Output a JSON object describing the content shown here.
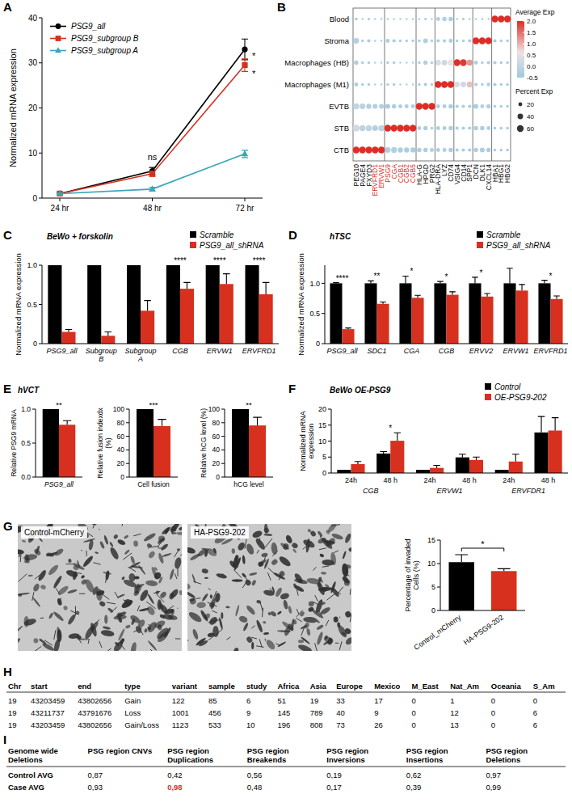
{
  "chart_data": [
    {
      "type": "line",
      "panel": "A",
      "y_label": "Normalized mRNA expression",
      "categories": [
        "24 hr",
        "48 hr",
        "72 hr"
      ],
      "ylim": [
        0,
        40
      ],
      "yticks": [
        0,
        10,
        20,
        30,
        40
      ],
      "legend": "upper left",
      "series": [
        {
          "name": "PSG9_all",
          "color": "#000000",
          "marker": "circle",
          "values": [
            1,
            6,
            33
          ],
          "errors": [
            0.2,
            0.8,
            2.3
          ]
        },
        {
          "name": "PSG9_subgroup B",
          "color": "#d7301f",
          "marker": "square",
          "values": [
            1,
            5.4,
            29.5
          ],
          "errors": [
            0.2,
            0.6,
            1.4
          ]
        },
        {
          "name": "PSG9_subgroup A",
          "color": "#37a6b5",
          "marker": "triangle",
          "values": [
            1,
            2,
            9.8
          ],
          "errors": [
            0.1,
            0.4,
            0.8
          ]
        }
      ],
      "annotations": [
        {
          "text": "ns",
          "x": "48 hr",
          "y": 9
        },
        {
          "text": "*",
          "x": "72 hr",
          "y": 31.5
        },
        {
          "text": "*",
          "x": "72 hr",
          "y": 27.5
        }
      ]
    },
    {
      "type": "dot",
      "panel": "B",
      "rows": [
        "Blood",
        "Stroma",
        "Macrophages (HB)",
        "Macrophages (M1)",
        "EVTB",
        "STB",
        "CTB"
      ],
      "columns": [
        "PEG10",
        "PAGE4",
        "FXYD3",
        "ERVFRD1",
        "ERVW1",
        "PSG9",
        "CGA",
        "CGB1",
        "CGB2",
        "CGB5",
        "HLA-G",
        "HPGD",
        "PRG2",
        "HLA-DRA",
        "LYZ",
        "CD74",
        "VSIG4",
        "CD14",
        "SPP1",
        "DCN",
        "DLK1",
        "CXCL14",
        "HBA1",
        "HBG1",
        "HBG2"
      ],
      "column_label_colors": [
        "#000000",
        "#000000",
        "#000000",
        "#d7301f",
        "#d7301f",
        "#d7301f",
        "#d7301f",
        "#d7301f",
        "#d7301f",
        "#d7301f",
        "#000000",
        "#000000",
        "#000000",
        "#000000",
        "#000000",
        "#000000",
        "#000000",
        "#000000",
        "#000000",
        "#000000",
        "#000000",
        "#000000",
        "#000000",
        "#000000",
        "#000000"
      ],
      "expression": [
        [
          -0.4,
          -0.4,
          -0.4,
          -0.4,
          -0.4,
          -0.4,
          -0.4,
          -0.4,
          -0.4,
          -0.4,
          -0.4,
          -0.4,
          -0.4,
          -0.3,
          -0.2,
          -0.3,
          -0.4,
          -0.4,
          -0.4,
          -0.4,
          -0.4,
          -0.4,
          2,
          2,
          2
        ],
        [
          -0.2,
          -0.3,
          -0.3,
          -0.4,
          -0.4,
          -0.3,
          -0.3,
          -0.3,
          -0.3,
          -0.3,
          -0.3,
          -0.2,
          -0.3,
          -0.3,
          -0.3,
          -0.3,
          -0.3,
          -0.3,
          -0.3,
          2,
          2,
          2,
          -0.4,
          -0.4,
          -0.4
        ],
        [
          -0.3,
          -0.3,
          -0.3,
          -0.3,
          -0.3,
          -0.3,
          -0.3,
          -0.3,
          -0.3,
          -0.3,
          -0.3,
          -0.2,
          -0.3,
          0.4,
          0.2,
          0.6,
          2,
          1.9,
          1.2,
          -0.3,
          -0.3,
          -0.3,
          -0.3,
          -0.4,
          -0.4
        ],
        [
          -0.3,
          -0.3,
          -0.3,
          -0.3,
          -0.3,
          -0.3,
          -0.3,
          -0.3,
          -0.3,
          -0.3,
          -0.3,
          -0.3,
          -0.3,
          2,
          2,
          2,
          0.3,
          0.2,
          0.9,
          -0.3,
          -0.3,
          -0.2,
          -0.3,
          -0.4,
          -0.4
        ],
        [
          0,
          -0.1,
          -0.2,
          -0.2,
          -0.2,
          -0.4,
          -0.3,
          -0.3,
          -0.3,
          -0.3,
          2,
          2,
          2,
          -0.3,
          -0.3,
          -0.3,
          -0.3,
          -0.3,
          -0.3,
          -0.3,
          -0.2,
          -0.2,
          -0.4,
          -0.4,
          -0.4
        ],
        [
          0.2,
          -0.1,
          0,
          -0.2,
          -0.1,
          2,
          2,
          2,
          2,
          2,
          -0.3,
          -0.3,
          -0.4,
          -0.3,
          -0.3,
          -0.3,
          -0.3,
          -0.3,
          -0.3,
          -0.3,
          -0.3,
          -0.3,
          -0.4,
          -0.4,
          -0.4
        ],
        [
          2,
          2,
          2,
          2,
          2,
          -0.3,
          -0.2,
          -0.3,
          -0.3,
          -0.3,
          -0.3,
          -0.3,
          -0.3,
          -0.3,
          -0.3,
          -0.3,
          -0.3,
          -0.3,
          -0.3,
          -0.3,
          -0.3,
          -0.3,
          -0.4,
          -0.4,
          -0.4
        ]
      ],
      "percent": [
        [
          10,
          5,
          8,
          5,
          5,
          5,
          5,
          5,
          5,
          5,
          5,
          8,
          5,
          20,
          25,
          25,
          5,
          8,
          5,
          5,
          5,
          5,
          60,
          60,
          60
        ],
        [
          40,
          10,
          15,
          5,
          5,
          20,
          15,
          10,
          10,
          10,
          10,
          30,
          10,
          15,
          15,
          20,
          10,
          10,
          15,
          60,
          60,
          60,
          15,
          10,
          10
        ],
        [
          25,
          10,
          10,
          5,
          5,
          10,
          10,
          5,
          5,
          5,
          10,
          25,
          10,
          40,
          40,
          50,
          60,
          60,
          50,
          20,
          10,
          15,
          15,
          10,
          10
        ],
        [
          20,
          10,
          10,
          5,
          5,
          10,
          10,
          5,
          5,
          5,
          10,
          15,
          10,
          60,
          60,
          60,
          40,
          40,
          45,
          15,
          10,
          20,
          15,
          10,
          10
        ],
        [
          50,
          40,
          35,
          30,
          30,
          30,
          25,
          20,
          20,
          20,
          60,
          60,
          60,
          20,
          20,
          25,
          15,
          15,
          15,
          30,
          20,
          25,
          10,
          10,
          10
        ],
        [
          60,
          45,
          50,
          40,
          50,
          60,
          60,
          60,
          60,
          60,
          20,
          25,
          10,
          20,
          20,
          25,
          15,
          15,
          15,
          25,
          25,
          20,
          10,
          10,
          10
        ],
        [
          60,
          60,
          60,
          60,
          60,
          40,
          45,
          35,
          35,
          35,
          25,
          25,
          20,
          20,
          20,
          25,
          15,
          15,
          15,
          25,
          30,
          25,
          10,
          10,
          10
        ]
      ],
      "color_label": "Average Exp",
      "color_lim": [
        -0.5,
        2
      ],
      "color_ticks": [
        -0.5,
        {
          "value": 0,
          "label": "0.0"
        },
        0.5,
        {
          "value": 1,
          "label": "1.0"
        },
        1.5,
        {
          "value": 2,
          "label": "2.0"
        }
      ],
      "size_label": "Percent Exp",
      "size_lim": [
        0,
        60
      ],
      "size_ticks": [
        20,
        40,
        60
      ]
    },
    {
      "type": "bar",
      "panel": "C",
      "title": "BeWo + forskolin",
      "y_label": "Normalized mRNA expression",
      "categories": [
        "PSG9_all",
        "Subgroup B",
        "Subgroup A",
        "CGB",
        "ERVW1",
        "ERVFRD1"
      ],
      "ylim": [
        0,
        1
      ],
      "yticks": [
        0,
        0.5,
        {
          "value": 1,
          "label": "1.0"
        }
      ],
      "legend": "top",
      "series": [
        {
          "name": "Scramble",
          "color": "#000000",
          "values": [
            1,
            1,
            1,
            1,
            1,
            1
          ]
        },
        {
          "name": "PSG9_all_shRNA",
          "color": "#d7301f",
          "values": [
            0.15,
            0.1,
            0.42,
            0.7,
            0.76,
            0.63
          ],
          "errors": [
            0.03,
            0.05,
            0.13,
            0.08,
            0.13,
            0.15
          ]
        }
      ],
      "significance": [
        null,
        null,
        null,
        "****",
        "****",
        "****"
      ]
    },
    {
      "type": "bar",
      "panel": "D",
      "title": "hTSC",
      "y_label": "Normalized mRNA expression",
      "categories": [
        "PSG9_all",
        "SDC1",
        "CGA",
        "CGB",
        "ERVV2",
        "ERVW1",
        "ERVFRD1"
      ],
      "ylim": [
        0,
        1.3
      ],
      "yticks": [
        0,
        0.5,
        {
          "value": 1,
          "label": "1.0"
        }
      ],
      "legend": "top",
      "series": [
        {
          "name": "Scramble",
          "color": "#000000",
          "values": [
            1,
            1,
            1,
            1,
            1,
            1,
            1
          ],
          "errors": [
            0.01,
            0.04,
            0.12,
            0.03,
            0.1,
            0.25,
            0.05
          ]
        },
        {
          "name": "PSG9_all_shRNA",
          "color": "#d7301f",
          "values": [
            0.24,
            0.66,
            0.76,
            0.81,
            0.78,
            0.88,
            0.74
          ],
          "errors": [
            0.02,
            0.03,
            0.04,
            0.05,
            0.05,
            0.1,
            0.05
          ]
        }
      ],
      "significance": [
        "****",
        "**",
        "*",
        "*",
        "*",
        null,
        "*"
      ]
    },
    {
      "type": "bar",
      "panel": "E",
      "title": "hVCT",
      "y_label": "Relative PSG9 mRNA",
      "categories": [
        "PSG9_all"
      ],
      "ylim": [
        0,
        1
      ],
      "yticks": [
        {
          "value": 0,
          "label": "0.0"
        },
        0.5,
        {
          "value": 1,
          "label": "1.0"
        }
      ],
      "series": [
        {
          "color": "#000000",
          "values": [
            1
          ]
        },
        {
          "color": "#d7301f",
          "values": [
            0.77
          ],
          "errors": [
            0.06
          ]
        }
      ],
      "significance": [
        "**"
      ]
    },
    {
      "type": "bar",
      "y_label": "Relative fusion indexdx (%)",
      "categories": [
        "Cell fusion"
      ],
      "ylim": [
        0,
        100
      ],
      "yticks": [
        0,
        20,
        40,
        60,
        80,
        100
      ],
      "series": [
        {
          "color": "#000000",
          "values": [
            100
          ]
        },
        {
          "color": "#d7301f",
          "values": [
            75
          ],
          "errors": [
            10
          ]
        }
      ],
      "significance": [
        "***"
      ]
    },
    {
      "type": "bar",
      "y_label": "Relative hCG level (%)",
      "categories": [
        "hCG level"
      ],
      "ylim": [
        0,
        100
      ],
      "yticks": [
        0,
        20,
        40,
        60,
        80,
        100
      ],
      "series": [
        {
          "color": "#000000",
          "values": [
            100
          ]
        },
        {
          "color": "#d7301f",
          "values": [
            76
          ],
          "errors": [
            12
          ]
        }
      ],
      "significance": [
        "**"
      ]
    },
    {
      "type": "bar",
      "panel": "F",
      "title": "BeWo OE-PSG9",
      "y_label": "Normalized mRNA expression",
      "categories": [
        "24h",
        "48 h",
        "24h",
        "48 h",
        "24h",
        "48 h"
      ],
      "groups": [
        "CGB",
        "ERVW1",
        "ERVFDR1"
      ],
      "ylim": [
        0,
        20
      ],
      "yticks": [
        0,
        5,
        10,
        15,
        20
      ],
      "legend": "top",
      "series": [
        {
          "name": "Control",
          "color": "#000000",
          "values": [
            1,
            6.1,
            1,
            4.9,
            1,
            12.7
          ],
          "errors": [
            0,
            0.6,
            0,
            1,
            0,
            5
          ]
        },
        {
          "name": "OE-PSG9-202",
          "color": "#d7301f",
          "values": [
            2.8,
            10.1,
            1.6,
            4.1,
            3.6,
            13.3
          ],
          "errors": [
            0.8,
            2.5,
            0.8,
            0.9,
            2.3,
            4
          ]
        }
      ],
      "significance": [
        null,
        "*",
        null,
        null,
        null,
        null
      ]
    },
    {
      "type": "bar",
      "y_label": "Percentage of invaded Cells (%)",
      "categories": [
        "Control_mCherry",
        "HA-PSG9-202"
      ],
      "ylim": [
        0,
        15
      ],
      "yticks": [
        0,
        5,
        10,
        15
      ],
      "series": [
        {
          "colors": [
            "#000000",
            "#d7301f"
          ],
          "values": [
            10.3,
            8.4
          ],
          "errors": [
            1.6,
            0.5
          ]
        }
      ],
      "significance": "*"
    }
  ],
  "images": {
    "panel": "G",
    "labels": [
      "Control-mCherry",
      "HA-PSG9-202"
    ]
  },
  "tables": [
    {
      "panel": "H",
      "columns": [
        "Chr",
        "start",
        "end",
        "type",
        "variant",
        "sample",
        "study",
        "Africa",
        "Asia",
        "Europe",
        "Mexico",
        "M_East",
        "Nat_Am",
        "Oceania",
        "S_Am"
      ],
      "rows": [
        [
          19,
          43203459,
          43802656,
          "Gain",
          122,
          85,
          6,
          51,
          19,
          33,
          17,
          0,
          1,
          0,
          0
        ],
        [
          19,
          43211737,
          43791676,
          "Loss",
          1001,
          456,
          9,
          145,
          789,
          40,
          9,
          0,
          12,
          0,
          6
        ],
        [
          19,
          43203459,
          43802656,
          "Gain/Loss",
          1123,
          533,
          10,
          196,
          808,
          73,
          26,
          0,
          13,
          0,
          6
        ]
      ]
    },
    {
      "panel": "I",
      "columns": [
        "Genome wide Deletions",
        "PSG region CNVs",
        "PSG region Duplications",
        "PSG region Breakends",
        "PSG region Inversions",
        "PSG region Insertions",
        "PSG region Deletions"
      ],
      "rows": [
        [
          "Control AVG",
          "0,87",
          "0,42",
          "0,56",
          "0,19",
          "0,62",
          "0,97"
        ],
        [
          "Case AVG",
          "0,93",
          {
            "text": "0,98",
            "color": "#d7301f"
          },
          "0,48",
          "0,17",
          "0,39",
          "0,99"
        ]
      ]
    }
  ]
}
